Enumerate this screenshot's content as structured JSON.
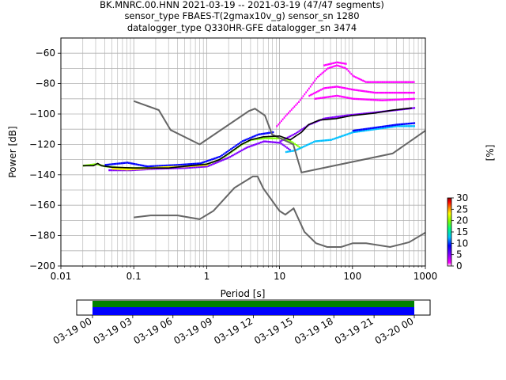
{
  "chart_data": {
    "type": "heatmap",
    "title": [
      "BK.MNRC.00.HNN   2021-03-19 -- 2021-03-19  (47/47 segments)",
      "sensor_type FBAES-T(2gmax10v_g) sensor_sn 1280",
      "datalogger_type Q330HR-GFE datalogger_sn 3474"
    ],
    "xlabel": "Period [s]",
    "ylabel": "Power [dB]",
    "x_scale": "log",
    "xlim": [
      0.01,
      1000
    ],
    "ylim": [
      -200,
      -50
    ],
    "x_ticks": [
      {
        "value": 0.01,
        "label": "0.01"
      },
      {
        "value": 0.1,
        "label": "0.1"
      },
      {
        "value": 1,
        "label": "1"
      },
      {
        "value": 10,
        "label": "10"
      },
      {
        "value": 100,
        "label": "100"
      },
      {
        "value": 1000,
        "label": "1000"
      }
    ],
    "y_ticks": [
      {
        "value": -60,
        "label": "−60"
      },
      {
        "value": -80,
        "label": "−80"
      },
      {
        "value": -100,
        "label": "−100"
      },
      {
        "value": -120,
        "label": "−120"
      },
      {
        "value": -140,
        "label": "−140"
      },
      {
        "value": -160,
        "label": "−160"
      },
      {
        "value": -180,
        "label": "−180"
      },
      {
        "value": -200,
        "label": "−200"
      }
    ],
    "grid": true,
    "colorbar": {
      "label": "[%]",
      "range": [
        0,
        30
      ],
      "ticks": [
        {
          "value": 0,
          "label": "0"
        },
        {
          "value": 5,
          "label": "5"
        },
        {
          "value": 10,
          "label": "10"
        },
        {
          "value": 15,
          "label": "15"
        },
        {
          "value": 20,
          "label": "20"
        },
        {
          "value": 25,
          "label": "25"
        },
        {
          "value": 30,
          "label": "30"
        }
      ],
      "colors": [
        "#ffffff",
        "#ff00ff",
        "#8000ff",
        "#0000ff",
        "#00c0ff",
        "#00ff80",
        "#80ff00",
        "#ffff00",
        "#ff8000",
        "#ff0000",
        "#8b0000"
      ]
    },
    "nhnm": [
      [
        0.1,
        -91.5
      ],
      [
        0.22,
        -97.4
      ],
      [
        0.32,
        -110.5
      ],
      [
        0.8,
        -120
      ],
      [
        3.8,
        -98
      ],
      [
        4.6,
        -96.5
      ],
      [
        6.3,
        -101
      ],
      [
        7.9,
        -113.5
      ],
      [
        15.4,
        -120
      ],
      [
        20,
        -138.5
      ],
      [
        354.8,
        -126
      ],
      [
        1000,
        -111
      ]
    ],
    "nlnm": [
      [
        0.1,
        -168
      ],
      [
        0.17,
        -166.7
      ],
      [
        0.4,
        -166.7
      ],
      [
        0.8,
        -169.2
      ],
      [
        1.24,
        -163.7
      ],
      [
        2.4,
        -148.6
      ],
      [
        4.3,
        -141.1
      ],
      [
        5,
        -141.1
      ],
      [
        6,
        -149
      ],
      [
        10,
        -163.8
      ],
      [
        12,
        -166.2
      ],
      [
        15.6,
        -162.1
      ],
      [
        21.9,
        -177.5
      ],
      [
        31.6,
        -185
      ],
      [
        45,
        -187.5
      ],
      [
        70,
        -187.5
      ],
      [
        101,
        -185
      ],
      [
        154,
        -185
      ],
      [
        328,
        -187.5
      ],
      [
        600,
        -184.4
      ],
      [
        1000,
        -178
      ]
    ],
    "median": [
      [
        0.02,
        -134
      ],
      [
        0.028,
        -134
      ],
      [
        0.032,
        -132.5
      ],
      [
        0.036,
        -134
      ],
      [
        0.05,
        -135
      ],
      [
        0.1,
        -135.5
      ],
      [
        0.15,
        -135.5
      ],
      [
        0.3,
        -135.5
      ],
      [
        0.6,
        -134
      ],
      [
        1,
        -133
      ],
      [
        1.5,
        -130
      ],
      [
        2,
        -126
      ],
      [
        3,
        -120
      ],
      [
        4,
        -117
      ],
      [
        6,
        -115
      ],
      [
        10,
        -114.5
      ],
      [
        14,
        -117
      ],
      [
        20,
        -112
      ],
      [
        25,
        -107
      ],
      [
        35,
        -104
      ],
      [
        60,
        -103
      ],
      [
        100,
        -101
      ],
      [
        200,
        -99.5
      ],
      [
        350,
        -97.5
      ],
      [
        650,
        -96
      ]
    ],
    "pdf_bands": [
      {
        "level": 18,
        "points": [
          [
            0.02,
            -134
          ],
          [
            0.03,
            -133
          ],
          [
            0.04,
            -134.5
          ],
          [
            0.07,
            -135.5
          ],
          [
            0.15,
            -135.5
          ],
          [
            0.3,
            -135.5
          ],
          [
            0.6,
            -134
          ],
          [
            1,
            -133
          ],
          [
            1.5,
            -130
          ],
          [
            2,
            -126
          ],
          [
            3,
            -120
          ],
          [
            4,
            -117
          ],
          [
            6,
            -116
          ],
          [
            10,
            -116
          ],
          [
            14,
            -118
          ],
          [
            20,
            -123
          ]
        ]
      },
      {
        "level": 9,
        "points": [
          [
            0.04,
            -133.5
          ],
          [
            0.08,
            -132
          ],
          [
            0.15,
            -134.5
          ],
          [
            0.4,
            -133.5
          ],
          [
            0.8,
            -132.5
          ],
          [
            1.5,
            -128
          ],
          [
            3,
            -118
          ],
          [
            5,
            -113.5
          ],
          [
            8,
            -112
          ]
        ]
      },
      {
        "level": 6,
        "points": [
          [
            0.045,
            -137
          ],
          [
            0.09,
            -137
          ],
          [
            0.2,
            -136
          ],
          [
            0.5,
            -135.5
          ],
          [
            1,
            -134.5
          ],
          [
            2,
            -128.5
          ],
          [
            3.5,
            -122
          ],
          [
            6,
            -118
          ],
          [
            10,
            -119
          ],
          [
            14,
            -124
          ]
        ]
      },
      {
        "level": 22,
        "points": [
          [
            0.05,
            -136
          ],
          [
            0.08,
            -136.5
          ],
          [
            0.12,
            -136
          ],
          [
            0.25,
            -135
          ],
          [
            0.5,
            -134.5
          ],
          [
            1,
            -133.5
          ]
        ]
      },
      {
        "level": 12,
        "points": [
          [
            12,
            -125
          ],
          [
            16,
            -124
          ],
          [
            22,
            -121
          ],
          [
            30,
            -118
          ],
          [
            50,
            -117
          ],
          [
            100,
            -112
          ],
          [
            200,
            -110
          ],
          [
            400,
            -108
          ],
          [
            700,
            -108
          ]
        ]
      },
      {
        "level": 10,
        "points": [
          [
            100,
            -111
          ],
          [
            200,
            -109
          ],
          [
            400,
            -107
          ],
          [
            700,
            -106
          ]
        ]
      },
      {
        "level": 2,
        "points": [
          [
            9,
            -108
          ],
          [
            12,
            -101
          ],
          [
            18,
            -92
          ],
          [
            25,
            -83
          ],
          [
            32,
            -76
          ],
          [
            45,
            -70
          ],
          [
            60,
            -68
          ],
          [
            80,
            -70
          ],
          [
            100,
            -75
          ],
          [
            150,
            -79
          ],
          [
            250,
            -79
          ],
          [
            700,
            -79
          ]
        ]
      },
      {
        "level": 2,
        "points": [
          [
            25,
            -88
          ],
          [
            40,
            -83
          ],
          [
            60,
            -82
          ],
          [
            100,
            -84
          ],
          [
            200,
            -86
          ],
          [
            700,
            -86
          ]
        ]
      },
      {
        "level": 2,
        "points": [
          [
            30,
            -90
          ],
          [
            60,
            -88
          ],
          [
            100,
            -90
          ],
          [
            250,
            -91
          ],
          [
            700,
            -90
          ]
        ]
      },
      {
        "level": 3,
        "points": [
          [
            40,
            -68
          ],
          [
            60,
            -66
          ],
          [
            80,
            -67
          ]
        ]
      },
      {
        "level": 5,
        "points": [
          [
            10,
            -118
          ],
          [
            16,
            -113
          ],
          [
            25,
            -107
          ],
          [
            40,
            -103
          ],
          [
            80,
            -101
          ],
          [
            200,
            -99
          ],
          [
            700,
            -96
          ]
        ]
      }
    ],
    "segment_bar": {
      "ticks": [
        "03-19 00",
        "03-19 03",
        "03-19 06",
        "03-19 09",
        "03-19 12",
        "03-19 15",
        "03-19 18",
        "03-19 21",
        "03-20 00"
      ],
      "upper_color": "#008000",
      "lower_color": "#0000ff"
    }
  }
}
